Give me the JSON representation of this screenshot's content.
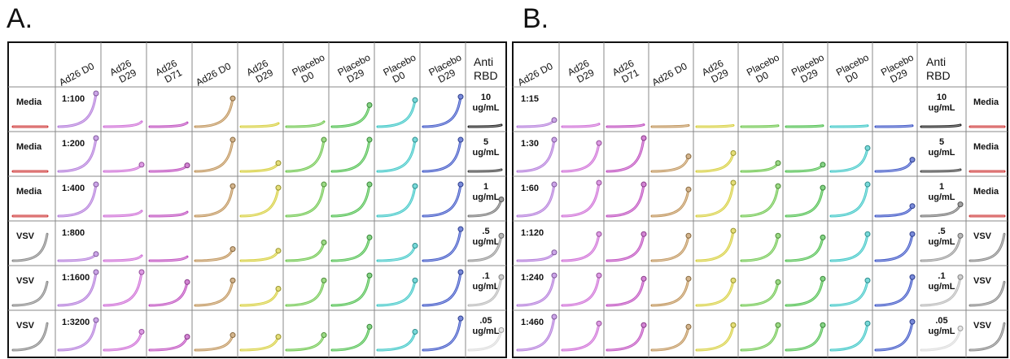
{
  "panel_labels": [
    "A.",
    "B."
  ],
  "chart_data": [
    {
      "type": "line",
      "panel": "A.",
      "columns": [
        "Ad26 D0",
        "Ad26 D29",
        "Ad26 D71",
        "Ad26 D0",
        "Ad26 D29",
        "Placebo D0",
        "Placebo D29",
        "Placebo D0",
        "Placebo D29"
      ],
      "control_header": "Anti RBD",
      "row_labels": [
        "Media",
        "Media",
        "Media",
        "VSV",
        "VSV",
        "VSV"
      ],
      "dilutions": [
        "1:100",
        "1:200",
        "1:400",
        "1:800",
        "1:1600",
        "1:3200"
      ],
      "control_concentrations": [
        "10 ug/mL",
        "5 ug/mL",
        "1 ug/mL",
        ".5 ug/mL",
        ".1 ug/mL",
        ".05 ug/mL"
      ],
      "column_colors": [
        "#b57edc",
        "#d070d8",
        "#c050c0",
        "#c0945a",
        "#d8d040",
        "#70c850",
        "#50c050",
        "#40c8c8",
        "#4058c8"
      ],
      "control_colors": [
        "#222222",
        "#444444",
        "#777777",
        "#999999",
        "#bbbbbb",
        "#dddddd"
      ],
      "row_label_colors": [
        "#d04040",
        "#d04040",
        "#d04040",
        "#888888",
        "#888888",
        "#888888"
      ],
      "curve_rise": [
        [
          1.0,
          0.15,
          0.12,
          0.85,
          0.1,
          0.15,
          0.65,
          0.8,
          0.9
        ],
        [
          1.0,
          0.2,
          0.18,
          0.95,
          0.25,
          0.95,
          0.95,
          0.95,
          0.95
        ],
        [
          0.95,
          0.15,
          0.12,
          0.9,
          0.85,
          0.95,
          0.95,
          0.9,
          0.95
        ],
        [
          0.2,
          0.15,
          0.12,
          0.35,
          0.3,
          0.55,
          0.7,
          0.45,
          0.95
        ],
        [
          1.0,
          1.0,
          0.7,
          0.75,
          0.5,
          0.75,
          0.9,
          0.75,
          1.0
        ],
        [
          0.9,
          0.55,
          0.4,
          0.45,
          0.4,
          0.45,
          0.7,
          0.55,
          0.95
        ]
      ],
      "control_rise": [
        0.05,
        0.05,
        0.5,
        0.75,
        0.85,
        0.6
      ],
      "row_label_rise": [
        0.0,
        0.0,
        0.0,
        0.8,
        0.7,
        0.8
      ]
    },
    {
      "type": "line",
      "panel": "B.",
      "columns": [
        "Ad26 D0",
        "Ad26 D29",
        "Ad26 D71",
        "Ad26 D0",
        "Ad26 D29",
        "Placebo D0",
        "Placebo D29",
        "Placebo D0",
        "Placebo D29"
      ],
      "control_header": "Anti RBD",
      "row_labels": [
        "Media",
        "Media",
        "Media",
        "VSV",
        "VSV",
        "VSV"
      ],
      "dilutions": [
        "1:15",
        "1:30",
        "1:60",
        "1:120",
        "1:240",
        "1:460"
      ],
      "control_concentrations": [
        "10 ug/mL",
        "5 ug/mL",
        "1 ug/mL",
        ".5 ug/mL",
        ".1 ug/mL",
        ".05 ug/mL"
      ],
      "column_colors": [
        "#b57edc",
        "#d070d8",
        "#c050c0",
        "#c0945a",
        "#d8d040",
        "#70c850",
        "#50c050",
        "#40c8c8",
        "#4058c8"
      ],
      "control_colors": [
        "#222222",
        "#444444",
        "#777777",
        "#999999",
        "#bbbbbb",
        "#dddddd"
      ],
      "row_label_colors": [
        "#d04040",
        "#d04040",
        "#d04040",
        "#888888",
        "#888888",
        "#888888"
      ],
      "curve_rise": [
        [
          0.2,
          0.08,
          0.06,
          0.04,
          0.04,
          0.03,
          0.03,
          0.03,
          0.03
        ],
        [
          0.95,
          0.85,
          1.0,
          0.45,
          0.55,
          0.25,
          0.2,
          0.7,
          0.35
        ],
        [
          0.95,
          1.0,
          0.95,
          0.8,
          1.0,
          0.9,
          0.85,
          0.95,
          0.3
        ],
        [
          0.25,
          0.8,
          0.8,
          0.75,
          0.9,
          0.75,
          0.7,
          0.8,
          0.8
        ],
        [
          0.9,
          0.9,
          0.8,
          0.8,
          0.75,
          0.7,
          0.8,
          0.75,
          0.85
        ],
        [
          1.0,
          0.8,
          0.75,
          0.7,
          0.75,
          0.75,
          0.75,
          0.8,
          0.85
        ]
      ],
      "control_rise": [
        0.05,
        0.05,
        0.35,
        0.75,
        0.85,
        0.65
      ],
      "row_label_rise": [
        0.0,
        0.0,
        0.0,
        0.8,
        0.7,
        0.8
      ]
    }
  ]
}
